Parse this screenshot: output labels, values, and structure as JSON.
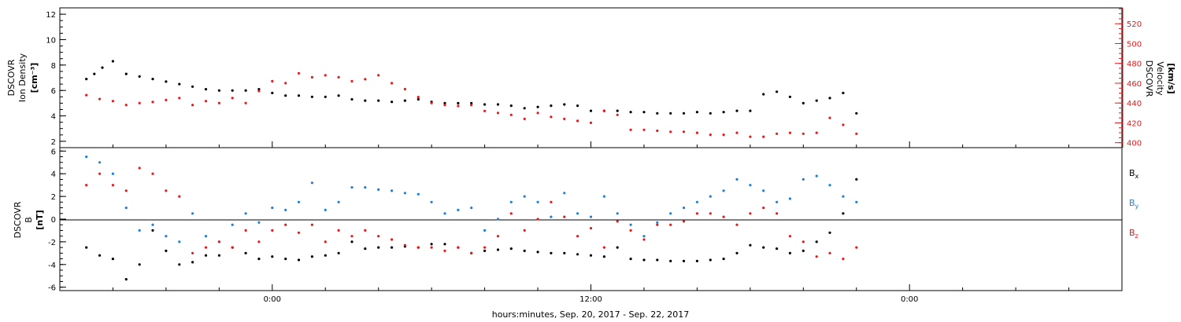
{
  "chart_data": [
    {
      "type": "scatter",
      "panel": "plasma",
      "ylabel_left": [
        "DSCOVR",
        "Ion Density",
        "[cm⁻³]"
      ],
      "ylabel_right": [
        "DSCOVR",
        "Velocity",
        "[km/s]"
      ],
      "ylim_left": [
        1.5,
        12.5
      ],
      "yticks_left": [
        "2",
        "4",
        "6",
        "8",
        "10",
        "12"
      ],
      "ylim_right": [
        395,
        536
      ],
      "yticks_right": [
        "400",
        "420",
        "440",
        "460",
        "480",
        "500",
        "520"
      ],
      "grid": false,
      "colors": {
        "density": "#000000",
        "velocity": "#e41a1c"
      },
      "series": [
        {
          "key": "density",
          "axis": "left",
          "x": [
            -7.0,
            -6.7,
            -6.4,
            -6.0,
            -5.5,
            -5.0,
            -4.5,
            -4.0,
            -3.5,
            -3.0,
            -2.5,
            -2.0,
            -1.5,
            -1.0,
            -0.5,
            0.0,
            0.5,
            1.0,
            1.5,
            2.0,
            2.5,
            3.0,
            3.5,
            4.0,
            4.5,
            5.0,
            5.5,
            6.0,
            6.5,
            7.0,
            7.5,
            8.0,
            8.5,
            9.0,
            9.5,
            10.0,
            10.5,
            11.0,
            11.5,
            12.0,
            12.5,
            13.0,
            13.5,
            14.0,
            14.5,
            15.0,
            15.5,
            16.0,
            16.5,
            17.0,
            17.5,
            18.0,
            18.5,
            19.0,
            19.5,
            20.0,
            20.5,
            21.0,
            21.5,
            22.0
          ],
          "y": [
            6.9,
            7.3,
            7.8,
            8.3,
            7.3,
            7.1,
            6.9,
            6.7,
            6.5,
            6.3,
            6.1,
            6.0,
            6.0,
            6.0,
            6.1,
            5.8,
            5.6,
            5.6,
            5.5,
            5.5,
            5.6,
            5.3,
            5.2,
            5.2,
            5.1,
            5.2,
            5.3,
            5.1,
            5.0,
            5.0,
            5.0,
            4.9,
            4.9,
            4.8,
            4.6,
            4.7,
            4.8,
            4.9,
            4.8,
            4.4,
            4.4,
            4.4,
            4.3,
            4.3,
            4.2,
            4.2,
            4.2,
            4.3,
            4.2,
            4.3,
            4.4,
            4.4,
            5.7,
            5.9,
            5.5,
            5.0,
            5.2,
            5.4,
            5.8,
            4.2
          ]
        },
        {
          "key": "velocity",
          "axis": "right",
          "x": [
            -7.0,
            -6.5,
            -6.0,
            -5.5,
            -5.0,
            -4.5,
            -4.0,
            -3.5,
            -3.0,
            -2.5,
            -2.0,
            -1.5,
            -1.0,
            -0.5,
            0.0,
            0.5,
            1.0,
            1.5,
            2.0,
            2.5,
            3.0,
            3.5,
            4.0,
            4.5,
            5.0,
            5.5,
            6.0,
            6.5,
            7.0,
            7.5,
            8.0,
            8.5,
            9.0,
            9.5,
            10.0,
            10.5,
            11.0,
            11.5,
            12.0,
            12.5,
            13.0,
            13.5,
            14.0,
            14.5,
            15.0,
            15.5,
            16.0,
            16.5,
            17.0,
            17.5,
            18.0,
            18.5,
            19.0,
            19.5,
            20.0,
            20.5,
            21.0,
            21.5,
            22.0
          ],
          "y": [
            448,
            444,
            442,
            438,
            440,
            441,
            443,
            445,
            438,
            442,
            440,
            445,
            440,
            452,
            462,
            460,
            470,
            466,
            468,
            466,
            462,
            464,
            468,
            460,
            454,
            446,
            440,
            438,
            437,
            438,
            432,
            430,
            428,
            424,
            430,
            426,
            424,
            422,
            420,
            432,
            428,
            413,
            413,
            412,
            411,
            411,
            410,
            408,
            408,
            410,
            406,
            406,
            409,
            410,
            409,
            410,
            425,
            418,
            409
          ]
        }
      ]
    },
    {
      "type": "scatter",
      "panel": "magnetic field",
      "ylabel_left": [
        "DSCOVR",
        "B",
        "[nT]"
      ],
      "ylim": [
        -6.3,
        6.3
      ],
      "yticks": [
        "-6",
        "-4",
        "-2",
        "0",
        "2",
        "4",
        "6"
      ],
      "zero_line": true,
      "grid": false,
      "legend": "right",
      "colors": {
        "Bx": "#000000",
        "By": "#1f7fd6",
        "Bz": "#e41a1c"
      },
      "series": [
        {
          "key": "Bx",
          "x": [
            -7.0,
            -6.5,
            -6.0,
            -5.5,
            -5.0,
            -4.5,
            -4.0,
            -3.5,
            -3.0,
            -2.5,
            -2.0,
            -1.5,
            -1.0,
            -0.5,
            0.0,
            0.5,
            1.0,
            1.5,
            2.0,
            2.5,
            3.0,
            3.5,
            4.0,
            4.5,
            5.0,
            5.5,
            6.0,
            6.5,
            7.0,
            7.5,
            8.0,
            8.5,
            9.0,
            9.5,
            10.0,
            10.5,
            11.0,
            11.5,
            12.0,
            12.5,
            13.0,
            13.5,
            14.0,
            14.5,
            15.0,
            15.5,
            16.0,
            16.5,
            17.0,
            17.5,
            18.0,
            18.5,
            19.0,
            19.5,
            20.0,
            20.5,
            21.0,
            21.5,
            22.0
          ],
          "y": [
            -2.5,
            -3.2,
            -3.5,
            -5.3,
            -4.0,
            -1.0,
            -2.8,
            -4.0,
            -3.8,
            -3.2,
            -3.2,
            -2.5,
            -3.0,
            -3.5,
            -3.3,
            -3.5,
            -3.6,
            -3.3,
            -3.2,
            -3.0,
            -2.0,
            -2.6,
            -2.5,
            -2.5,
            -2.4,
            -2.5,
            -2.2,
            -2.2,
            -2.5,
            -3.0,
            -2.8,
            -2.7,
            -2.6,
            -2.8,
            -2.9,
            -3.0,
            -3.0,
            -3.1,
            -3.2,
            -3.3,
            -2.5,
            -3.5,
            -3.6,
            -3.6,
            -3.7,
            -3.7,
            -3.7,
            -3.6,
            -3.5,
            -3.0,
            -2.3,
            -2.5,
            -2.6,
            -3.0,
            -2.8,
            -2.0,
            -1.2,
            0.5,
            3.5
          ]
        },
        {
          "key": "By",
          "x": [
            -7.0,
            -6.5,
            -6.0,
            -5.5,
            -5.0,
            -4.5,
            -4.0,
            -3.5,
            -3.0,
            -2.5,
            -2.0,
            -1.5,
            -1.0,
            -0.5,
            0.0,
            0.5,
            1.0,
            1.5,
            2.0,
            2.5,
            3.0,
            3.5,
            4.0,
            4.5,
            5.0,
            5.5,
            6.0,
            6.5,
            7.0,
            7.5,
            8.0,
            8.5,
            9.0,
            9.5,
            10.0,
            10.5,
            11.0,
            11.5,
            12.0,
            12.5,
            13.0,
            13.5,
            14.0,
            14.5,
            15.0,
            15.5,
            16.0,
            16.5,
            17.0,
            17.5,
            18.0,
            18.5,
            19.0,
            19.5,
            20.0,
            20.5,
            21.0,
            21.5,
            22.0
          ],
          "y": [
            5.5,
            5.0,
            4.0,
            1.0,
            -1.0,
            -0.5,
            -1.5,
            -2.0,
            0.5,
            -1.5,
            -2.0,
            -0.5,
            0.5,
            -0.3,
            1.0,
            0.8,
            1.5,
            3.2,
            0.8,
            1.5,
            2.8,
            2.8,
            2.6,
            2.5,
            2.3,
            2.2,
            1.5,
            0.5,
            0.8,
            1.0,
            -1.0,
            0.0,
            1.5,
            2.0,
            1.5,
            0.2,
            2.3,
            0.5,
            0.2,
            2.0,
            0.5,
            -0.5,
            -1.5,
            -0.3,
            0.5,
            1.0,
            1.5,
            2.0,
            2.5,
            3.5,
            3.0,
            2.5,
            1.5,
            1.8,
            3.5,
            3.8,
            3.0,
            2.0,
            1.5
          ]
        },
        {
          "key": "Bz",
          "x": [
            -7.0,
            -6.5,
            -6.0,
            -5.5,
            -5.0,
            -4.5,
            -4.0,
            -3.5,
            -3.0,
            -2.5,
            -2.0,
            -1.5,
            -1.0,
            -0.5,
            0.0,
            0.5,
            1.0,
            1.5,
            2.0,
            2.5,
            3.0,
            3.5,
            4.0,
            4.5,
            5.0,
            5.5,
            6.0,
            6.5,
            7.0,
            7.5,
            8.0,
            8.5,
            9.0,
            9.5,
            10.0,
            10.5,
            11.0,
            11.5,
            12.0,
            12.5,
            13.0,
            13.5,
            14.0,
            14.5,
            15.0,
            15.5,
            16.0,
            16.5,
            17.0,
            17.5,
            18.0,
            18.5,
            19.0,
            19.5,
            20.0,
            20.5,
            21.0,
            21.5,
            22.0
          ],
          "y": [
            3.0,
            4.0,
            3.0,
            2.5,
            4.5,
            4.0,
            2.5,
            2.0,
            -3.0,
            -2.5,
            -2.0,
            -2.5,
            -1.0,
            -2.0,
            -1.0,
            -0.5,
            -1.2,
            -0.5,
            -2.0,
            -1.0,
            -1.5,
            -1.0,
            -1.5,
            -1.8,
            -2.3,
            -2.5,
            -2.5,
            -2.8,
            -2.5,
            -3.0,
            -2.5,
            -1.5,
            0.5,
            -1.0,
            0.0,
            1.5,
            0.2,
            -1.5,
            -0.8,
            -2.5,
            -0.2,
            -1.0,
            -1.8,
            -0.5,
            -0.5,
            -0.2,
            0.5,
            0.5,
            0.2,
            -0.5,
            0.5,
            1.0,
            0.5,
            -1.5,
            -2.0,
            -3.3,
            -3.0,
            -3.5,
            -2.5
          ]
        }
      ]
    }
  ],
  "x_axis": {
    "label": "hours:minutes, Sep. 20, 2017 - Sep. 22, 2017",
    "range_hours": [
      -8.0,
      32.0
    ],
    "major_ticks": [
      {
        "hours": 0,
        "label": "0:00"
      },
      {
        "hours": 12,
        "label": "12:00"
      },
      {
        "hours": 24,
        "label": "0:00"
      }
    ]
  },
  "legend": [
    {
      "key": "Bx",
      "base": "B",
      "sub": "x",
      "color": "#000000"
    },
    {
      "key": "By",
      "base": "B",
      "sub": "y",
      "color": "#1f7fd6"
    },
    {
      "key": "Bz",
      "base": "B",
      "sub": "z",
      "color": "#e41a1c"
    }
  ]
}
